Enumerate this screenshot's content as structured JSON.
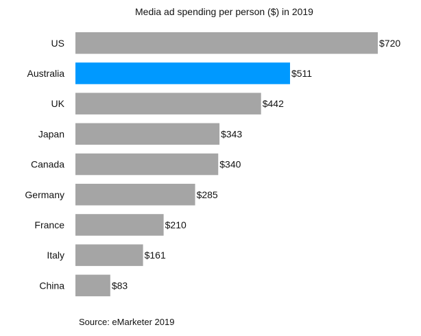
{
  "chart_data": {
    "type": "bar",
    "orientation": "horizontal",
    "title": "Media ad spending per person ($) in 2019",
    "categories": [
      "US",
      "Australia",
      "UK",
      "Japan",
      "Canada",
      "Germany",
      "France",
      "Italy",
      "China"
    ],
    "values": [
      720,
      511,
      442,
      343,
      340,
      285,
      210,
      161,
      83
    ],
    "data_labels": [
      "$720",
      "$511",
      "$442",
      "$343",
      "$340",
      "$285",
      "$210",
      "$161",
      "$83"
    ],
    "highlight": "Australia",
    "colors": {
      "default": "#a5a5a5",
      "highlight": "#0099ff"
    },
    "xlim": [
      0,
      720
    ],
    "grid": false,
    "x_axis_visible": false,
    "source": "Source: eMarketer 2019"
  }
}
